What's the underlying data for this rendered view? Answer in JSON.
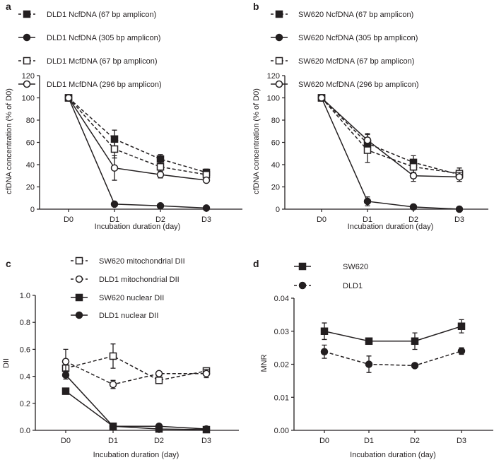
{
  "chart_data": [
    {
      "panel": "a",
      "type": "line",
      "categories": [
        "D0",
        "D1",
        "D2",
        "D3"
      ],
      "xlabel": "Incubation duration (day)",
      "ylabel": "cfDNA concentration (% of D0)",
      "ylim": [
        0,
        120
      ],
      "yticks": [
        "0",
        "20",
        "40",
        "60",
        "80",
        "100",
        "120"
      ],
      "legend_position": "top",
      "series": [
        {
          "name": "DLD1 NcfDNA (67 bp amplicon)",
          "marker": "square",
          "fill": "filled",
          "line": "dashed",
          "values": [
            100,
            63,
            45,
            33
          ],
          "errors": [
            0,
            8,
            4,
            3
          ]
        },
        {
          "name": "DLD1 NcfDNA (305 bp amplicon)",
          "marker": "circle",
          "fill": "filled",
          "line": "solid",
          "values": [
            100,
            4.5,
            3,
            1
          ],
          "errors": [
            0,
            0,
            0,
            0
          ]
        },
        {
          "name": "DLD1 McfDNA (67 bp amplicon)",
          "marker": "square",
          "fill": "open",
          "line": "dashed",
          "values": [
            100,
            54,
            38,
            31
          ],
          "errors": [
            0,
            8,
            4,
            3
          ]
        },
        {
          "name": "DLD1 McfDNA (296 bp amplicon)",
          "marker": "circle",
          "fill": "open",
          "line": "solid",
          "values": [
            100,
            37,
            31,
            26
          ],
          "errors": [
            0,
            11,
            3,
            2
          ]
        }
      ]
    },
    {
      "panel": "b",
      "type": "line",
      "categories": [
        "D0",
        "D1",
        "D2",
        "D3"
      ],
      "xlabel": "Incubation duration (day)",
      "ylabel": "cfDNA concentration (% of D0)",
      "ylim": [
        0,
        120
      ],
      "yticks": [
        "0",
        "20",
        "40",
        "60",
        "80",
        "100",
        "120"
      ],
      "legend_position": "top",
      "series": [
        {
          "name": "SW620 NcfDNA (67 bp amplicon)",
          "marker": "square",
          "fill": "filled",
          "line": "dashed",
          "values": [
            100,
            59,
            42,
            31
          ],
          "errors": [
            0,
            8,
            6,
            6
          ]
        },
        {
          "name": "SW620 NcfDNA (305 bp amplicon)",
          "marker": "circle",
          "fill": "filled",
          "line": "solid",
          "values": [
            100,
            7,
            2,
            0
          ],
          "errors": [
            0,
            4,
            0,
            0
          ]
        },
        {
          "name": "SW620 McfDNA (67 bp amplicon)",
          "marker": "square",
          "fill": "open",
          "line": "dashed",
          "values": [
            100,
            53,
            38,
            32
          ],
          "errors": [
            0,
            11,
            5,
            5
          ]
        },
        {
          "name": "SW620 McfDNA (296 bp amplicon)",
          "marker": "circle",
          "fill": "open",
          "line": "solid",
          "values": [
            100,
            62,
            30,
            29
          ],
          "errors": [
            0,
            6,
            5,
            4
          ]
        }
      ]
    },
    {
      "panel": "c",
      "type": "line",
      "categories": [
        "D0",
        "D1",
        "D2",
        "D3"
      ],
      "xlabel": "Incubation duration (day)",
      "ylabel": "DII",
      "ylim": [
        0,
        1
      ],
      "yticks": [
        "0.0",
        "0.2",
        "0.4",
        "0.6",
        "0.8",
        "1.0"
      ],
      "legend_position": "top",
      "series": [
        {
          "name": "SW620 mitochondrial DII",
          "marker": "square",
          "fill": "open",
          "line": "dashed",
          "values": [
            0.46,
            0.55,
            0.37,
            0.44
          ],
          "errors": [
            0.03,
            0.09,
            0.02,
            0.02
          ]
        },
        {
          "name": "DLD1 mitochondrial DII",
          "marker": "circle",
          "fill": "open",
          "line": "dashed",
          "values": [
            0.51,
            0.34,
            0.42,
            0.42
          ],
          "errors": [
            0.09,
            0.03,
            0.01,
            0.03
          ]
        },
        {
          "name": "SW620 nuclear DII",
          "marker": "square",
          "fill": "filled",
          "line": "solid",
          "values": [
            0.29,
            0.03,
            0.01,
            0.005
          ],
          "errors": [
            0,
            0,
            0,
            0
          ]
        },
        {
          "name": "DLD1 nuclear DII",
          "marker": "circle",
          "fill": "filled",
          "line": "solid",
          "values": [
            0.41,
            0.03,
            0.03,
            0.01
          ],
          "errors": [
            0.03,
            0,
            0,
            0
          ]
        }
      ]
    },
    {
      "panel": "d",
      "type": "line",
      "categories": [
        "D0",
        "D1",
        "D2",
        "D3"
      ],
      "xlabel": "Incubation duration (day)",
      "ylabel": "MNR",
      "ylim": [
        0,
        0.04
      ],
      "yticks": [
        "0.00",
        "0.01",
        "0.02",
        "0.03",
        "0.04"
      ],
      "legend_position": "top",
      "series": [
        {
          "name": "SW620",
          "marker": "square",
          "fill": "filled",
          "line": "solid",
          "values": [
            0.03,
            0.027,
            0.027,
            0.0315
          ],
          "errors": [
            0.0025,
            0,
            0.0025,
            0.002
          ]
        },
        {
          "name": "DLD1",
          "marker": "circle",
          "fill": "filled",
          "line": "dashed",
          "values": [
            0.0238,
            0.02,
            0.0196,
            0.024
          ],
          "errors": [
            0.002,
            0.0025,
            0,
            0.001
          ]
        }
      ]
    }
  ],
  "colors": {
    "ink": "#231f20"
  }
}
